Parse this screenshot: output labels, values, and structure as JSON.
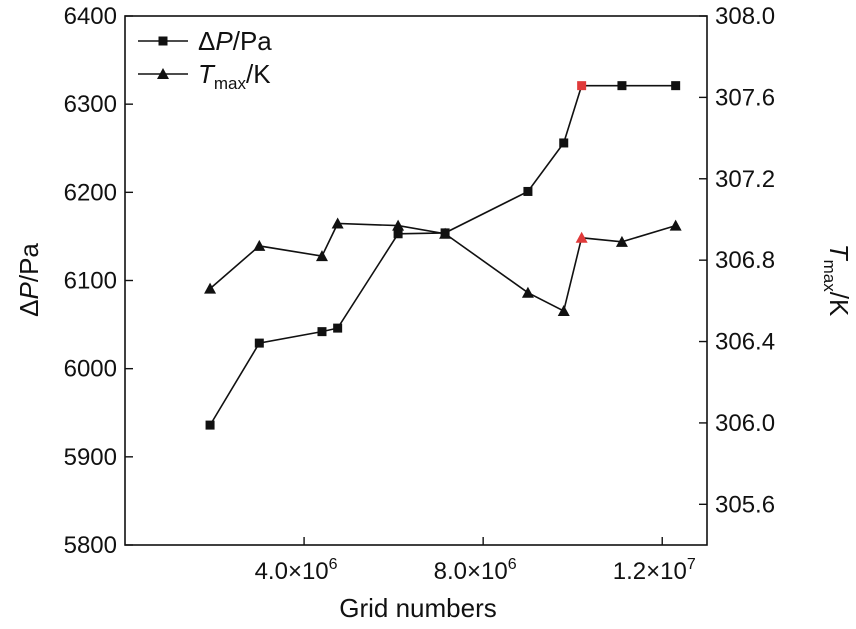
{
  "chart_data": {
    "type": "line",
    "title": "",
    "xlabel": "Grid numbers",
    "x_ticks": [
      4000000,
      8000000,
      12000000
    ],
    "x_tick_labels": [
      {
        "mantissa": "4.0×10",
        "exp": "6"
      },
      {
        "mantissa": "8.0×10",
        "exp": "6"
      },
      {
        "mantissa": "1.2×10",
        "exp": "7"
      }
    ],
    "xlim": [
      0,
      13000000
    ],
    "ylabel_left": {
      "prefix": "Δ",
      "var": "P",
      "suffix": "/Pa"
    },
    "ylim_left": [
      5800,
      6400
    ],
    "y_ticks_left": [
      "5800",
      "5900",
      "6000",
      "6100",
      "6200",
      "6300",
      "6400"
    ],
    "ylabel_right": {
      "var": "T",
      "sub": "max",
      "suffix": "/K"
    },
    "ylim_right": [
      305.4,
      308.0
    ],
    "y_ticks_right": [
      "305.6",
      "306.0",
      "306.4",
      "306.8",
      "307.2",
      "307.6",
      "308.0"
    ],
    "legend_position": "top-left",
    "highlight_color": "#e03a3a",
    "line_color": "#111111",
    "series": [
      {
        "name": "ΔP/Pa",
        "legend": {
          "prefix": "Δ",
          "var": "P",
          "suffix": "/Pa"
        },
        "axis": "left",
        "marker": "square",
        "x": [
          1900000,
          3000000,
          4400000,
          4750000,
          6100000,
          7150000,
          9000000,
          9800000,
          10200000,
          11100000,
          12300000
        ],
        "y": [
          5936,
          6029,
          6042,
          6046,
          6153,
          6154,
          6201,
          6256,
          6321,
          6321,
          6321
        ],
        "highlight_index": 8
      },
      {
        "name": "Tmax/K",
        "legend": {
          "var": "T",
          "sub": "max",
          "suffix": "/K"
        },
        "axis": "right",
        "marker": "triangle",
        "x": [
          1900000,
          3000000,
          4400000,
          4750000,
          6100000,
          7150000,
          9000000,
          9800000,
          10200000,
          11100000,
          12300000
        ],
        "y": [
          306.66,
          306.87,
          306.82,
          306.98,
          306.97,
          306.93,
          306.64,
          306.55,
          306.91,
          306.89,
          306.97
        ],
        "highlight_index": 8
      }
    ]
  }
}
